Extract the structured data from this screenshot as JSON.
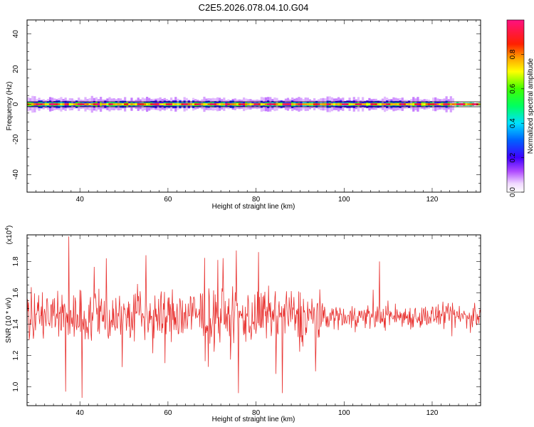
{
  "title": "C2E5.2026.078.04.10.G04",
  "colors": {
    "snr_line": "#e8312f",
    "frame": "#000000"
  },
  "colorbar": {
    "label": "Normalized spectral amplitude",
    "range": [
      0,
      1
    ],
    "ticks": [
      "0.0",
      "0.2",
      "0.4",
      "0.6",
      "0.8"
    ],
    "tick_values": [
      0.0,
      0.2,
      0.4,
      0.6,
      0.8
    ],
    "stops": [
      {
        "v": 0.0,
        "c": "#ffffff"
      },
      {
        "v": 0.05,
        "c": "#f0d8ff"
      },
      {
        "v": 0.12,
        "c": "#b04cff"
      },
      {
        "v": 0.2,
        "c": "#4000ff"
      },
      {
        "v": 0.3,
        "c": "#0060ff"
      },
      {
        "v": 0.4,
        "c": "#00e0ff"
      },
      {
        "v": 0.5,
        "c": "#00ff60"
      },
      {
        "v": 0.6,
        "c": "#40ff00"
      },
      {
        "v": 0.7,
        "c": "#ffff00"
      },
      {
        "v": 0.78,
        "c": "#ffa000"
      },
      {
        "v": 0.86,
        "c": "#ff2000"
      },
      {
        "v": 1.0,
        "c": "#ff1080"
      }
    ]
  },
  "chart_data": [
    {
      "type": "heatmap",
      "xlabel": "Height of straight line (km)",
      "ylabel": "Frequency (Hz)",
      "xlim": [
        28,
        131
      ],
      "ylim": [
        -50,
        48
      ],
      "xticks": [
        40,
        60,
        80,
        100,
        120
      ],
      "yticks": [
        -40,
        -20,
        0,
        20,
        40
      ],
      "band_center_hz": 0
    },
    {
      "type": "line",
      "xlabel": "Height of straight line (km)",
      "ylabel": "SNR (10 * v/v)",
      "y_multiplier": "(x10^4)",
      "xlim": [
        28,
        131
      ],
      "ylim": [
        0.88,
        1.97
      ],
      "xticks": [
        40,
        60,
        80,
        100,
        120
      ],
      "yticks": [
        1.0,
        1.2,
        1.4,
        1.6,
        1.8
      ],
      "ytick_labels": [
        "1.0",
        "1.2",
        "1.4",
        "1.6",
        "1.8"
      ],
      "series": [
        {
          "mean": 1.45,
          "x_step_km": 0.12,
          "peaks": [
            {
              "x": 37.5,
              "y": 1.96
            },
            {
              "x": 40.5,
              "y": 0.93
            },
            {
              "x": 36.8,
              "y": 0.97
            },
            {
              "x": 46.0,
              "y": 1.82
            },
            {
              "x": 55.0,
              "y": 1.84
            },
            {
              "x": 75.5,
              "y": 1.87
            },
            {
              "x": 80.5,
              "y": 1.86
            },
            {
              "x": 76.0,
              "y": 0.96
            },
            {
              "x": 86.0,
              "y": 0.96
            },
            {
              "x": 108.0,
              "y": 1.8
            }
          ]
        }
      ]
    }
  ]
}
